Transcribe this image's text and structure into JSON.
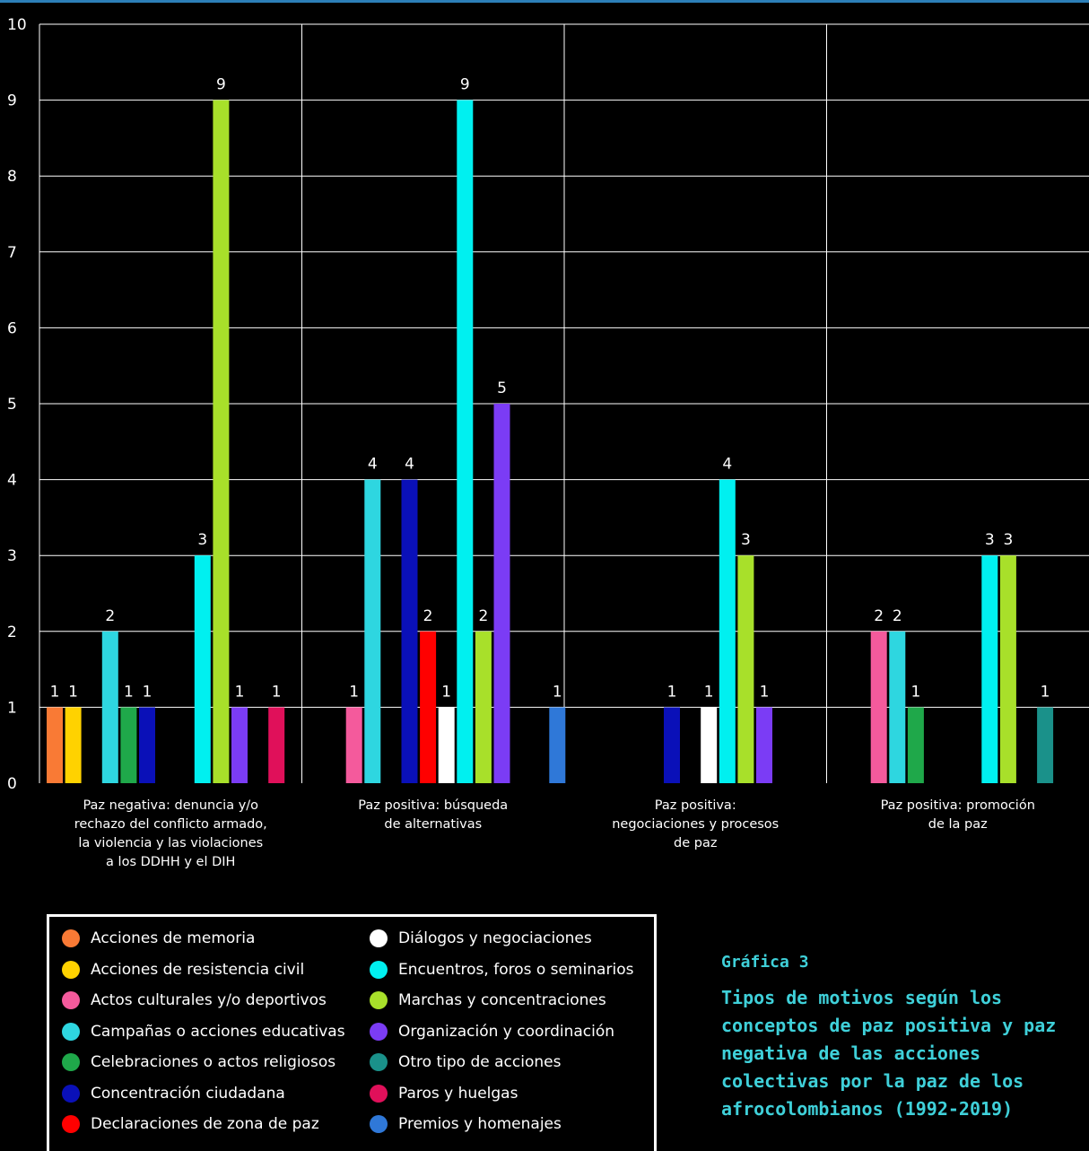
{
  "chart_data": {
    "type": "bar",
    "ylim": [
      0,
      10
    ],
    "yticks": [
      0,
      1,
      2,
      3,
      4,
      5,
      6,
      7,
      8,
      9,
      10
    ],
    "grid": true,
    "categories": [
      "Paz negativa: denuncia y/o rechazo del conflicto armado, la violencia y las violaciones a los DDHH y el DIH",
      "Paz positiva: búsqueda de alternativas",
      "Paz positiva: negociaciones y procesos de paz",
      "Paz positiva: promoción de la paz"
    ],
    "category_lines": [
      [
        "Paz negativa: denuncia y/o",
        "rechazo del conflicto armado,",
        "la violencia y las violaciones",
        "a los DDHH y el DIH"
      ],
      [
        "Paz positiva: búsqueda",
        "de alternativas"
      ],
      [
        "Paz positiva:",
        "negociaciones y procesos",
        "de paz"
      ],
      [
        "Paz positiva: promoción",
        "de la paz"
      ]
    ],
    "series": [
      {
        "name": "Acciones de memoria",
        "color": "#f97a35",
        "values": [
          1,
          null,
          null,
          null
        ]
      },
      {
        "name": "Acciones de resistencia civil",
        "color": "#ffd200",
        "values": [
          1,
          null,
          null,
          null
        ]
      },
      {
        "name": "Actos culturales y/o deportivos",
        "color": "#f45a9c",
        "values": [
          null,
          1,
          null,
          2
        ]
      },
      {
        "name": "Campañas o acciones educativas",
        "color": "#2ed6e0",
        "values": [
          2,
          4,
          null,
          2
        ]
      },
      {
        "name": "Celebraciones o actos religiosos",
        "color": "#1fa84a",
        "values": [
          1,
          null,
          null,
          1
        ]
      },
      {
        "name": "Concentración ciudadana",
        "color": "#0a10b8",
        "values": [
          1,
          4,
          1,
          null
        ]
      },
      {
        "name": "Declaraciones de zona de paz",
        "color": "#ff0000",
        "values": [
          null,
          2,
          null,
          null
        ]
      },
      {
        "name": "Diálogos y negociaciones",
        "color": "#ffffff",
        "values": [
          null,
          1,
          1,
          null
        ]
      },
      {
        "name": "Encuentros, foros o seminarios",
        "color": "#00f0f0",
        "values": [
          3,
          9,
          4,
          3
        ]
      },
      {
        "name": "Marchas y concentraciones",
        "color": "#a8e02a",
        "values": [
          9,
          2,
          3,
          3
        ]
      },
      {
        "name": "Organización y coordinación",
        "color": "#7b3cf5",
        "values": [
          1,
          5,
          1,
          null
        ]
      },
      {
        "name": "Otro tipo de acciones",
        "color": "#1a918a",
        "values": [
          null,
          null,
          null,
          1
        ]
      },
      {
        "name": "Paros y huelgas",
        "color": "#e0105a",
        "values": [
          1,
          null,
          null,
          null
        ]
      },
      {
        "name": "Premios y homenajes",
        "color": "#2f78d8",
        "values": [
          null,
          1,
          null,
          null
        ]
      }
    ]
  },
  "caption": {
    "label": "Gráfica 3",
    "title": "Tipos de motivos según los conceptos de paz positiva y paz negativa de las acciones colectivas por la paz de los afrocolombianos (1992-2019)"
  }
}
